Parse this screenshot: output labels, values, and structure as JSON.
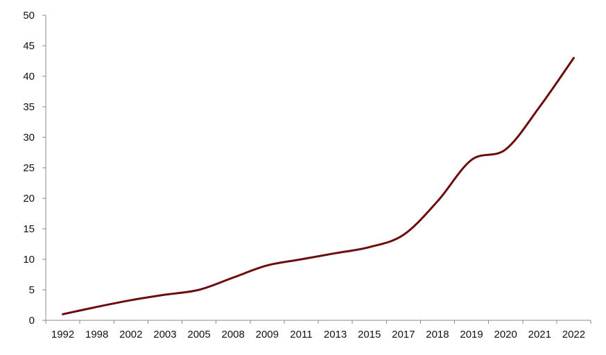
{
  "chart_data": {
    "type": "line",
    "categories": [
      "1992",
      "1998",
      "2002",
      "2003",
      "2005",
      "2008",
      "2009",
      "2011",
      "2013",
      "2015",
      "2017",
      "2018",
      "2019",
      "2020",
      "2021",
      "2022"
    ],
    "series": [
      {
        "values": [
          1.0,
          2.2,
          3.3,
          4.2,
          5.0,
          7.0,
          9.0,
          10.0,
          11.0,
          12.0,
          14.0,
          19.5,
          26.3,
          28.0,
          35.0,
          43.0
        ]
      }
    ],
    "y_ticks": [
      "0",
      "5",
      "10",
      "15",
      "20",
      "25",
      "30",
      "35",
      "40",
      "45",
      "50"
    ],
    "ylim": [
      0,
      50
    ],
    "grid": false,
    "legend": "none",
    "colors": {
      "line": "#6b0b0e",
      "axis": "#8a8a8a",
      "text": "#111111"
    }
  }
}
